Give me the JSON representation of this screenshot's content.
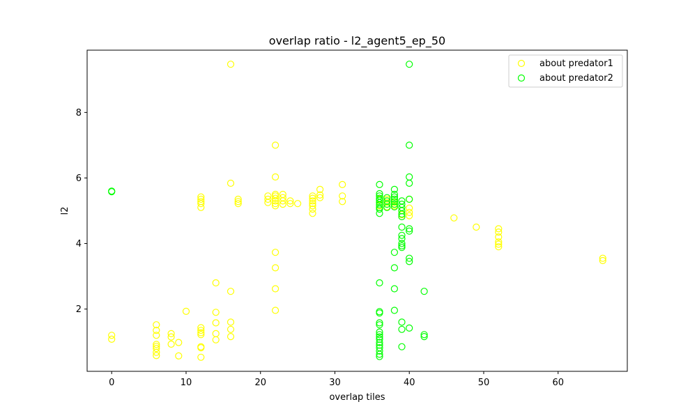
{
  "chart_data": {
    "type": "scatter",
    "title": "overlap ratio - l2_agent5_ep_50",
    "xlabel": "overlap tiles",
    "ylabel": "l2",
    "xlim": [
      -3.3,
      69.3
    ],
    "ylim": [
      0.1,
      9.9
    ],
    "xticks": [
      0,
      10,
      20,
      30,
      40,
      50,
      60
    ],
    "yticks": [
      2,
      4,
      6,
      8
    ],
    "grid": false,
    "legend_position": "top-right",
    "marker": "hollow-circle",
    "series": [
      {
        "name": "about predator1",
        "color": "#ffff00",
        "points": [
          [
            0,
            1.2
          ],
          [
            0,
            1.08
          ],
          [
            6,
            1.52
          ],
          [
            6,
            1.35
          ],
          [
            6,
            1.2
          ],
          [
            6,
            0.92
          ],
          [
            6,
            0.86
          ],
          [
            6,
            0.8
          ],
          [
            6,
            0.68
          ],
          [
            6,
            0.58
          ],
          [
            8,
            1.25
          ],
          [
            8,
            1.15
          ],
          [
            8,
            0.93
          ],
          [
            9,
            0.98
          ],
          [
            9,
            0.57
          ],
          [
            10,
            1.93
          ],
          [
            12,
            1.43
          ],
          [
            12,
            1.35
          ],
          [
            12,
            1.28
          ],
          [
            12,
            1.22
          ],
          [
            12,
            0.85
          ],
          [
            12,
            0.82
          ],
          [
            12,
            0.53
          ],
          [
            12,
            5.42
          ],
          [
            12,
            5.35
          ],
          [
            12,
            5.28
          ],
          [
            12,
            5.22
          ],
          [
            12,
            5.1
          ],
          [
            14,
            2.8
          ],
          [
            14,
            1.9
          ],
          [
            14,
            1.58
          ],
          [
            14,
            1.25
          ],
          [
            14,
            1.06
          ],
          [
            16,
            9.47
          ],
          [
            16,
            5.84
          ],
          [
            16,
            2.54
          ],
          [
            16,
            1.6
          ],
          [
            16,
            1.38
          ],
          [
            16,
            1.16
          ],
          [
            17,
            5.35
          ],
          [
            17,
            5.28
          ],
          [
            17,
            5.22
          ],
          [
            21,
            5.45
          ],
          [
            21,
            5.35
          ],
          [
            21,
            5.25
          ],
          [
            22,
            7.0
          ],
          [
            22,
            6.03
          ],
          [
            22,
            5.5
          ],
          [
            22,
            5.45
          ],
          [
            22,
            5.38
          ],
          [
            22,
            5.3
          ],
          [
            22,
            5.22
          ],
          [
            22,
            5.15
          ],
          [
            22,
            3.73
          ],
          [
            22,
            3.26
          ],
          [
            22,
            2.62
          ],
          [
            22,
            1.96
          ],
          [
            23,
            5.5
          ],
          [
            23,
            5.4
          ],
          [
            23,
            5.3
          ],
          [
            23,
            5.2
          ],
          [
            24,
            5.3
          ],
          [
            24,
            5.22
          ],
          [
            25,
            5.22
          ],
          [
            27,
            5.45
          ],
          [
            27,
            5.38
          ],
          [
            27,
            5.3
          ],
          [
            27,
            5.22
          ],
          [
            27,
            5.15
          ],
          [
            27,
            5.05
          ],
          [
            27,
            4.92
          ],
          [
            28,
            5.65
          ],
          [
            28,
            5.48
          ],
          [
            28,
            5.4
          ],
          [
            31,
            5.8
          ],
          [
            31,
            5.45
          ],
          [
            31,
            5.28
          ],
          [
            36,
            5.35
          ],
          [
            36,
            5.25
          ],
          [
            36,
            5.15
          ],
          [
            37,
            5.35
          ],
          [
            37,
            5.25
          ],
          [
            37,
            5.12
          ],
          [
            38,
            5.35
          ],
          [
            38,
            5.25
          ],
          [
            38,
            5.15
          ],
          [
            39,
            5.0
          ],
          [
            39,
            4.88
          ],
          [
            40,
            5.35
          ],
          [
            40,
            5.08
          ],
          [
            40,
            4.95
          ],
          [
            40,
            4.85
          ],
          [
            46,
            4.78
          ],
          [
            49,
            4.5
          ],
          [
            52,
            4.45
          ],
          [
            52,
            4.35
          ],
          [
            52,
            4.2
          ],
          [
            52,
            4.05
          ],
          [
            52,
            3.98
          ],
          [
            52,
            3.9
          ],
          [
            66,
            3.55
          ],
          [
            66,
            3.48
          ]
        ]
      },
      {
        "name": "about predator2",
        "color": "#00ff00",
        "points": [
          [
            0,
            5.6
          ],
          [
            0,
            5.58
          ],
          [
            36,
            5.8
          ],
          [
            36,
            5.52
          ],
          [
            36,
            5.45
          ],
          [
            36,
            5.38
          ],
          [
            36,
            5.32
          ],
          [
            36,
            5.25
          ],
          [
            36,
            5.18
          ],
          [
            36,
            5.1
          ],
          [
            36,
            5.05
          ],
          [
            36,
            4.92
          ],
          [
            36,
            2.8
          ],
          [
            36,
            1.92
          ],
          [
            36,
            1.88
          ],
          [
            36,
            1.58
          ],
          [
            36,
            1.52
          ],
          [
            36,
            1.3
          ],
          [
            36,
            1.22
          ],
          [
            36,
            1.15
          ],
          [
            36,
            1.08
          ],
          [
            36,
            0.98
          ],
          [
            36,
            0.9
          ],
          [
            36,
            0.82
          ],
          [
            36,
            0.72
          ],
          [
            36,
            0.62
          ],
          [
            36,
            0.55
          ],
          [
            37,
            5.4
          ],
          [
            37,
            5.3
          ],
          [
            37,
            5.2
          ],
          [
            37,
            5.1
          ],
          [
            38,
            5.65
          ],
          [
            38,
            5.5
          ],
          [
            38,
            5.42
          ],
          [
            38,
            5.35
          ],
          [
            38,
            5.28
          ],
          [
            38,
            5.2
          ],
          [
            38,
            5.12
          ],
          [
            38,
            3.73
          ],
          [
            38,
            3.26
          ],
          [
            38,
            2.62
          ],
          [
            38,
            1.96
          ],
          [
            39,
            5.3
          ],
          [
            39,
            5.2
          ],
          [
            39,
            5.1
          ],
          [
            39,
            5.0
          ],
          [
            39,
            4.9
          ],
          [
            39,
            4.82
          ],
          [
            39,
            4.5
          ],
          [
            39,
            4.25
          ],
          [
            39,
            4.15
          ],
          [
            39,
            4.0
          ],
          [
            39,
            3.93
          ],
          [
            39,
            3.88
          ],
          [
            39,
            1.6
          ],
          [
            39,
            1.38
          ],
          [
            39,
            0.85
          ],
          [
            40,
            9.47
          ],
          [
            40,
            7.0
          ],
          [
            40,
            6.03
          ],
          [
            40,
            5.84
          ],
          [
            40,
            5.35
          ],
          [
            40,
            4.45
          ],
          [
            40,
            4.38
          ],
          [
            40,
            3.55
          ],
          [
            40,
            3.45
          ],
          [
            40,
            1.42
          ],
          [
            42,
            2.54
          ],
          [
            42,
            1.22
          ],
          [
            42,
            1.16
          ]
        ]
      }
    ]
  }
}
